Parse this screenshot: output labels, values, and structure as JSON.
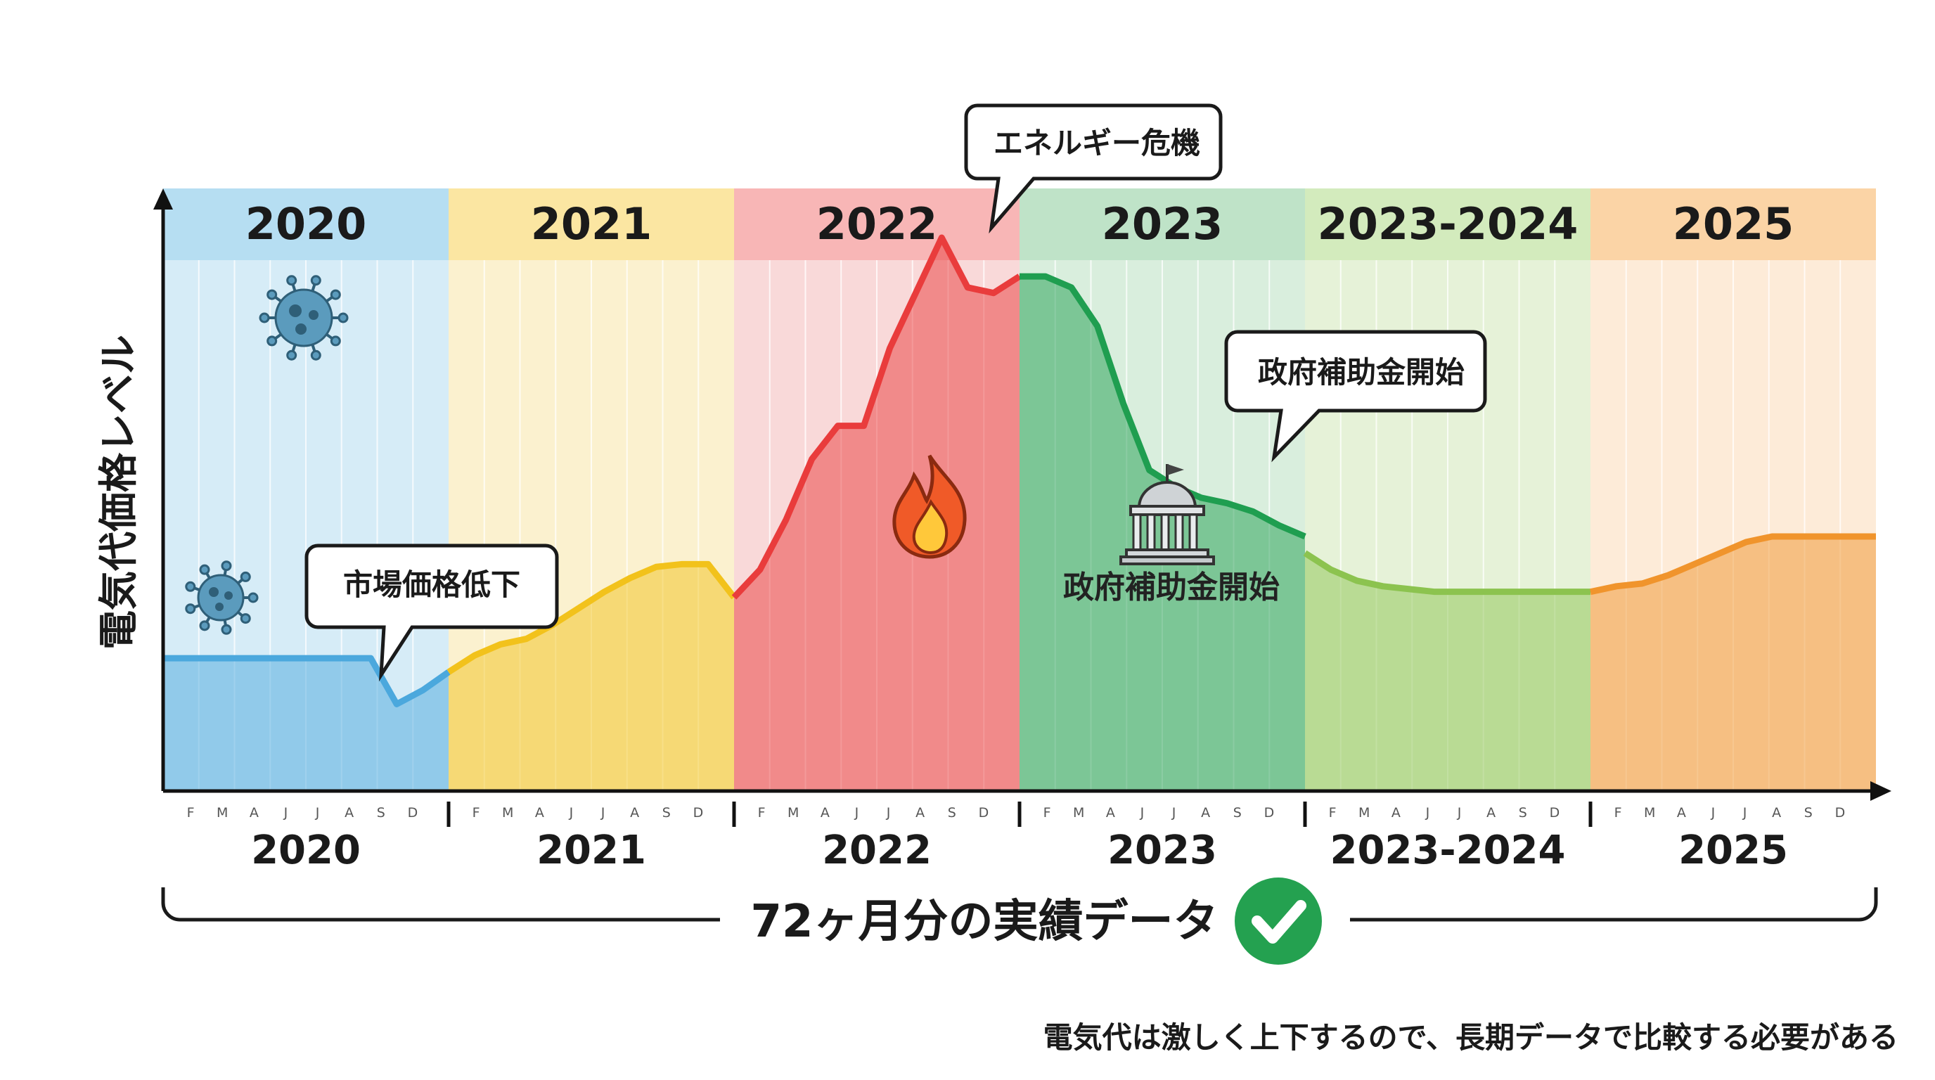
{
  "chart_data": {
    "type": "area",
    "ylabel": "電気代価格レベル",
    "xlabel": "",
    "ylim": [
      0,
      100
    ],
    "grid": "vertical monthly lines",
    "months_per_segment": 12,
    "month_tick_labels": [
      "F",
      "M",
      "A",
      "J",
      "J",
      "A",
      "S",
      "D"
    ],
    "segments": [
      {
        "label": "2020",
        "color": "#4ba8dd",
        "band": "#d6ecf7",
        "head": "#b6def2"
      },
      {
        "label": "2021",
        "color": "#f2c21b",
        "band": "#fbf1cf",
        "head": "#fbe6a2"
      },
      {
        "label": "2022",
        "color": "#e93c3c",
        "band": "#f9d9d9",
        "head": "#f8b6b6"
      },
      {
        "label": "2023",
        "color": "#1f9e50",
        "band": "#d9eedd",
        "head": "#bfe3c8"
      },
      {
        "label": "2023-2024",
        "color": "#8cc34f",
        "band": "#e6f2d8",
        "head": "#d3ebbd"
      },
      {
        "label": "2025",
        "color": "#f0942c",
        "band": "#fdebd8",
        "head": "#fbd4a6"
      }
    ],
    "series": [
      {
        "values": [
          24,
          24,
          24,
          24,
          24,
          24,
          24,
          24,
          24,
          15.7,
          18.2,
          21.5,
          21.5,
          24.5,
          26.5,
          27.5,
          30,
          33,
          36,
          38.5,
          40.5,
          41,
          41,
          35,
          35,
          40,
          49,
          60,
          66,
          66,
          80,
          90,
          100,
          91,
          90,
          93,
          93,
          93,
          91,
          84,
          70,
          58,
          55,
          53,
          52,
          50.5,
          48,
          46,
          43,
          40,
          38,
          37,
          36.5,
          36,
          36,
          36,
          36,
          36,
          36,
          36,
          36,
          37,
          37.5,
          39,
          41,
          43,
          45,
          46,
          46,
          46,
          46,
          46
        ]
      }
    ],
    "annotations": [
      {
        "text": "エネルギー危機"
      },
      {
        "text": "政府補助金開始"
      },
      {
        "text": "市場価格低下"
      }
    ]
  },
  "icons": {
    "virus": "virus-icon",
    "fire": "fire-icon",
    "government": "government-building-icon",
    "check": "check-circle-icon"
  },
  "labels": {
    "inline_subsidy": "政府補助金開始",
    "span_label": "72ヶ月分の実績データ",
    "footnote": "電気代は激しく上下するので、長期データで比較する必要がある"
  },
  "colors": {
    "axis": "#111111",
    "check_green": "#24a150",
    "callout_border": "#1a1a1a"
  }
}
